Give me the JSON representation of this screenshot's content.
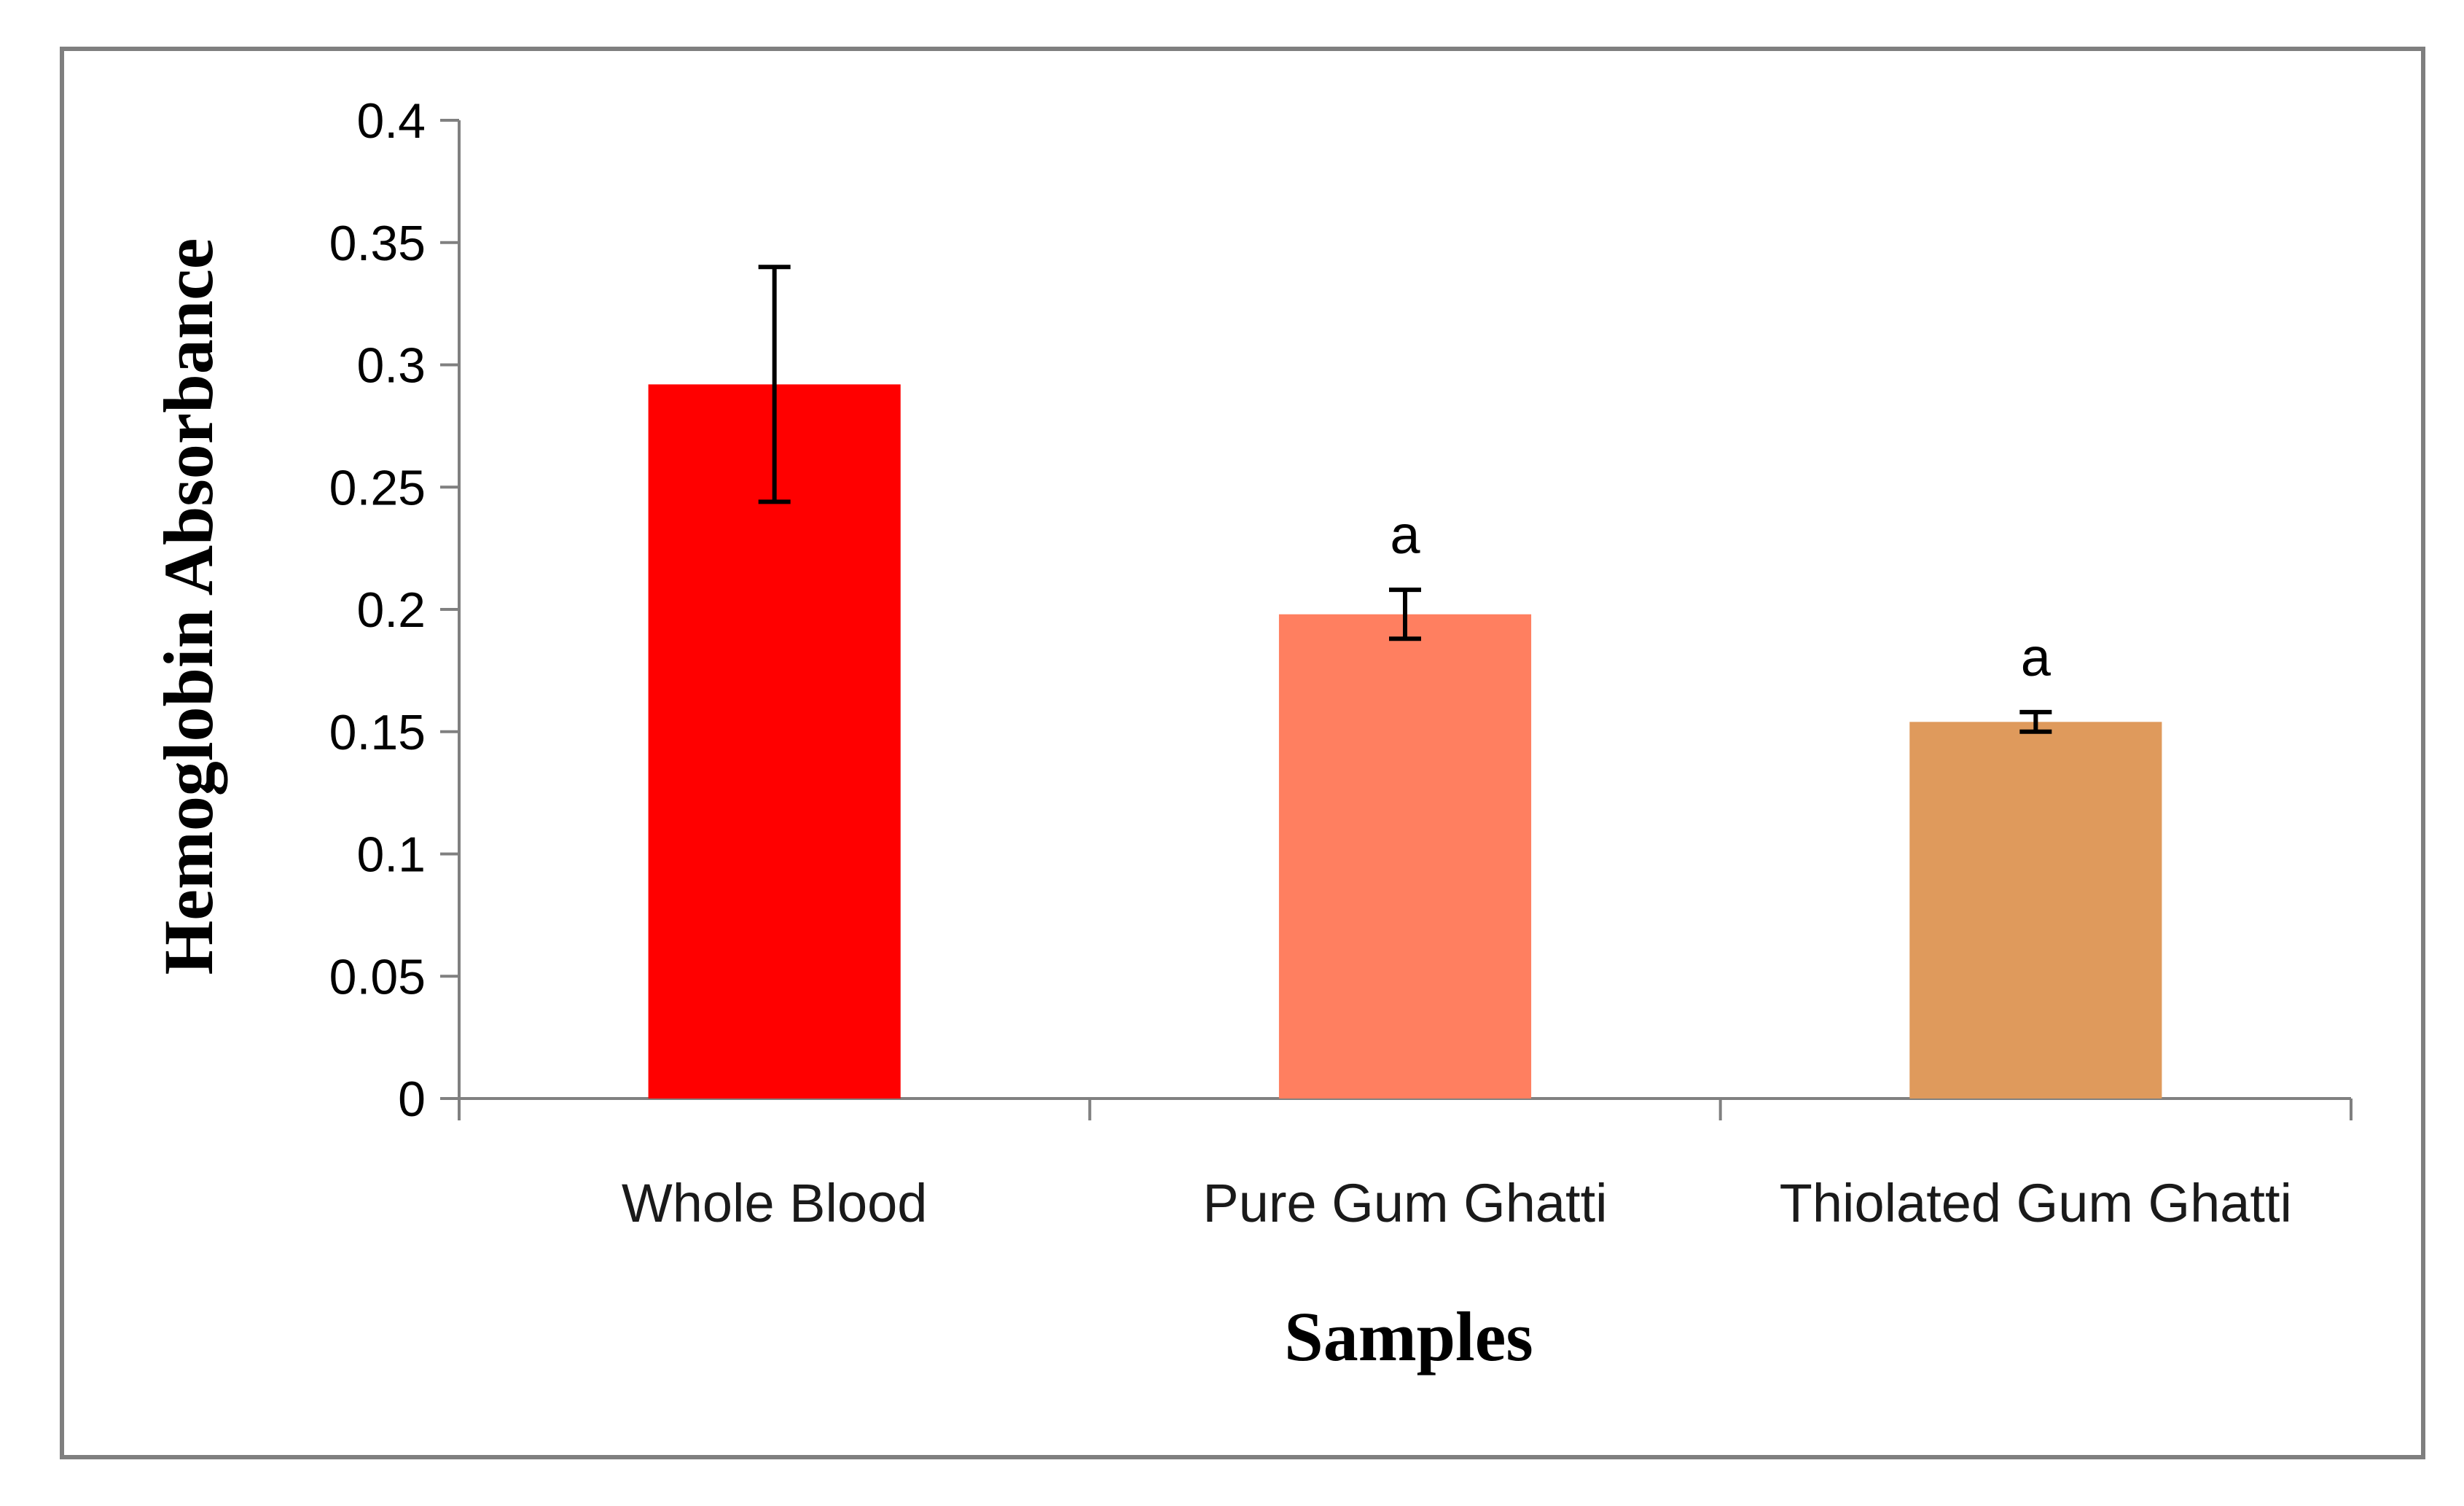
{
  "chart_data": {
    "type": "bar",
    "title": "",
    "xlabel": "Samples",
    "ylabel": "Hemoglobin Absorbance",
    "ylim": [
      0,
      0.4
    ],
    "yticks": [
      0,
      0.05,
      0.1,
      0.15,
      0.2,
      0.25,
      0.3,
      0.35,
      0.4
    ],
    "ytick_labels": [
      "0",
      "0.05",
      "0.1",
      "0.15",
      "0.2",
      "0.25",
      "0.3",
      "0.35",
      "0.4"
    ],
    "grid": false,
    "legend": "none",
    "categories": [
      "Whole Blood",
      "Pure Gum Ghatti",
      "Thiolated Gum Ghatti"
    ],
    "values": [
      0.292,
      0.198,
      0.154
    ],
    "errors": [
      0.048,
      0.01,
      0.004
    ],
    "annotations": [
      "",
      "a",
      "a"
    ],
    "colors": [
      "#ff0000",
      "#ff7f60",
      "#df9a5c"
    ]
  }
}
